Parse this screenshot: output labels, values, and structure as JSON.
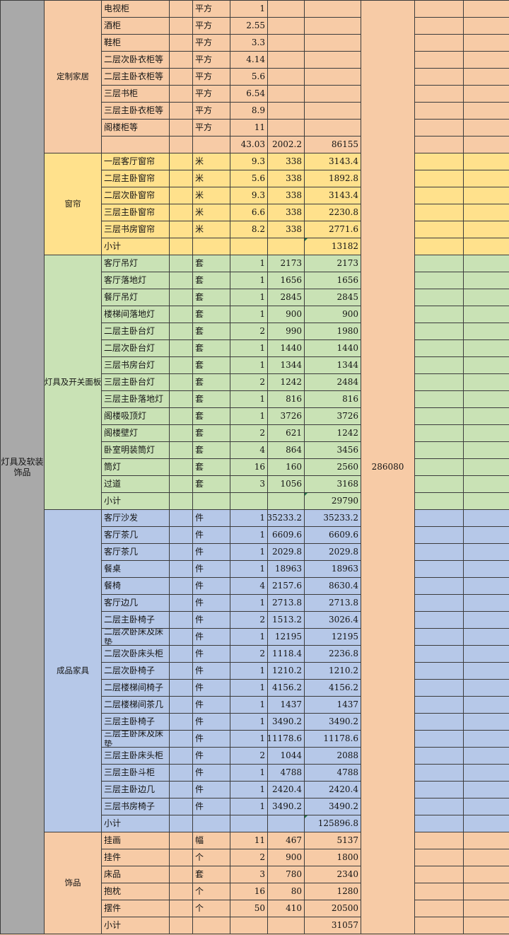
{
  "group": {
    "title": "灯具及软装饰品",
    "grand_total": "286080",
    "subtotal_label": "小计"
  },
  "colors": {
    "grid_line": "#3c3c3c",
    "gray": "#a9a9a9",
    "peach": "#f7cba6",
    "yellow": "#ffe18c",
    "green": "#c9e2b5",
    "blue": "#b6c8e8",
    "flag_green": "#217346"
  },
  "columns": [
    "group",
    "category",
    "item",
    "blank",
    "unit",
    "quantity",
    "unit_price",
    "total",
    "group_total",
    "extra_1",
    "extra_2"
  ],
  "sections": [
    {
      "name": "定制家居",
      "color": "#f7cba6",
      "rows": [
        {
          "item": "电视柜",
          "unit": "平方",
          "qty": "1"
        },
        {
          "item": "酒柜",
          "unit": "平方",
          "qty": "2.55"
        },
        {
          "item": "鞋柜",
          "unit": "平方",
          "qty": "3.3"
        },
        {
          "item": "二层次卧衣柜等",
          "unit": "平方",
          "qty": "4.14"
        },
        {
          "item": "二层主卧衣柜等",
          "unit": "平方",
          "qty": "5.6"
        },
        {
          "item": "三层书柜",
          "unit": "平方",
          "qty": "6.54"
        },
        {
          "item": "三层主卧衣柜等",
          "unit": "平方",
          "qty": "8.9"
        },
        {
          "item": "阁楼柜等",
          "unit": "平方",
          "qty": "11"
        }
      ],
      "subtotal": {
        "label": "",
        "qty": "43.03",
        "unit_price": "2002.2",
        "total": "86155",
        "flag": false
      }
    },
    {
      "name": "窗帘",
      "color": "#ffe18c",
      "rows": [
        {
          "item": "一层客厅窗帘",
          "unit": "米",
          "qty": "9.3",
          "unit_price": "338",
          "total": "3143.4"
        },
        {
          "item": "二层主卧窗帘",
          "unit": "米",
          "qty": "5.6",
          "unit_price": "338",
          "total": "1892.8"
        },
        {
          "item": "二层次卧窗帘",
          "unit": "米",
          "qty": "9.3",
          "unit_price": "338",
          "total": "3143.4"
        },
        {
          "item": "三层主卧窗帘",
          "unit": "米",
          "qty": "6.6",
          "unit_price": "338",
          "total": "2230.8"
        },
        {
          "item": "三层书房窗帘",
          "unit": "米",
          "qty": "8.2",
          "unit_price": "338",
          "total": "2771.6"
        }
      ],
      "subtotal": {
        "label": "小计",
        "total": "13182",
        "flag": true
      }
    },
    {
      "name": "灯具及开关面板",
      "color": "#c9e2b5",
      "rows": [
        {
          "item": "客厅吊灯",
          "unit": "套",
          "qty": "1",
          "unit_price": "2173",
          "total": "2173"
        },
        {
          "item": "客厅落地灯",
          "unit": "套",
          "qty": "1",
          "unit_price": "1656",
          "total": "1656"
        },
        {
          "item": "餐厅吊灯",
          "unit": "套",
          "qty": "1",
          "unit_price": "2845",
          "total": "2845"
        },
        {
          "item": "楼梯间落地灯",
          "unit": "套",
          "qty": "1",
          "unit_price": "900",
          "total": "900"
        },
        {
          "item": "二层主卧台灯",
          "unit": "套",
          "qty": "2",
          "unit_price": "990",
          "total": "1980"
        },
        {
          "item": "二层次卧台灯",
          "unit": "套",
          "qty": "1",
          "unit_price": "1440",
          "total": "1440"
        },
        {
          "item": "三层书房台灯",
          "unit": "套",
          "qty": "1",
          "unit_price": "1344",
          "total": "1344"
        },
        {
          "item": "三层主卧台灯",
          "unit": "套",
          "qty": "2",
          "unit_price": "1242",
          "total": "2484"
        },
        {
          "item": "三层主卧落地灯",
          "unit": "套",
          "qty": "1",
          "unit_price": "816",
          "total": "816"
        },
        {
          "item": "阁楼吸顶灯",
          "unit": "套",
          "qty": "1",
          "unit_price": "3726",
          "total": "3726"
        },
        {
          "item": "阁楼壁灯",
          "unit": "套",
          "qty": "2",
          "unit_price": "621",
          "total": "1242"
        },
        {
          "item": "卧室明装筒灯",
          "unit": "套",
          "qty": "4",
          "unit_price": "864",
          "total": "3456"
        },
        {
          "item": "筒灯",
          "unit": "套",
          "qty": "16",
          "unit_price": "160",
          "total": "2560"
        },
        {
          "item": "过道",
          "unit": "套",
          "qty": "3",
          "unit_price": "1056",
          "total": "3168"
        }
      ],
      "subtotal": {
        "label": "小计",
        "total": "29790",
        "flag": true
      }
    },
    {
      "name": "成品家具",
      "color": "#b6c8e8",
      "rows": [
        {
          "item": "客厅沙发",
          "unit": "件",
          "qty": "1",
          "unit_price": "35233.2",
          "total": "35233.2"
        },
        {
          "item": "客厅茶几",
          "unit": "件",
          "qty": "1",
          "unit_price": "6609.6",
          "total": "6609.6"
        },
        {
          "item": "客厅茶几",
          "unit": "件",
          "qty": "1",
          "unit_price": "2029.8",
          "total": "2029.8"
        },
        {
          "item": "餐桌",
          "unit": "件",
          "qty": "1",
          "unit_price": "18963",
          "total": "18963"
        },
        {
          "item": "餐椅",
          "unit": "件",
          "qty": "4",
          "unit_price": "2157.6",
          "total": "8630.4"
        },
        {
          "item": "客厅边几",
          "unit": "件",
          "qty": "1",
          "unit_price": "2713.8",
          "total": "2713.8"
        },
        {
          "item": "二层主卧椅子",
          "unit": "件",
          "qty": "2",
          "unit_price": "1513.2",
          "total": "3026.4"
        },
        {
          "item": "二层次卧床及床垫",
          "unit": "件",
          "qty": "1",
          "unit_price": "12195",
          "total": "12195"
        },
        {
          "item": "二层次卧床头柜",
          "unit": "件",
          "qty": "2",
          "unit_price": "1118.4",
          "total": "2236.8"
        },
        {
          "item": "二层次卧椅子",
          "unit": "件",
          "qty": "1",
          "unit_price": "1210.2",
          "total": "1210.2"
        },
        {
          "item": "二层楼梯间椅子",
          "unit": "件",
          "qty": "1",
          "unit_price": "4156.2",
          "total": "4156.2"
        },
        {
          "item": "二层楼梯间茶几",
          "unit": "件",
          "qty": "1",
          "unit_price": "1437",
          "total": "1437"
        },
        {
          "item": "三层主卧椅子",
          "unit": "件",
          "qty": "1",
          "unit_price": "3490.2",
          "total": "3490.2"
        },
        {
          "item": "三层主卧床及床垫",
          "unit": "件",
          "qty": "1",
          "unit_price": "11178.6",
          "total": "11178.6"
        },
        {
          "item": "三层主卧床头柜",
          "unit": "件",
          "qty": "2",
          "unit_price": "1044",
          "total": "2088"
        },
        {
          "item": "三层主卧斗柜",
          "unit": "件",
          "qty": "1",
          "unit_price": "4788",
          "total": "4788"
        },
        {
          "item": "三层主卧边几",
          "unit": "件",
          "qty": "1",
          "unit_price": "2420.4",
          "total": "2420.4"
        },
        {
          "item": "三层书房椅子",
          "unit": "件",
          "qty": "1",
          "unit_price": "3490.2",
          "total": "3490.2"
        }
      ],
      "subtotal": {
        "label": "小计",
        "total": "125896.8",
        "flag": true
      }
    },
    {
      "name": "饰品",
      "color": "#f7cba6",
      "rows": [
        {
          "item": "挂画",
          "unit": "幅",
          "qty": "11",
          "unit_price": "467",
          "total": "5137"
        },
        {
          "item": "挂件",
          "unit": "个",
          "qty": "2",
          "unit_price": "900",
          "total": "1800"
        },
        {
          "item": "床品",
          "unit": "套",
          "qty": "3",
          "unit_price": "780",
          "total": "2340"
        },
        {
          "item": "抱枕",
          "unit": "个",
          "qty": "16",
          "unit_price": "80",
          "total": "1280"
        },
        {
          "item": "摆件",
          "unit": "个",
          "qty": "50",
          "unit_price": "410",
          "total": "20500"
        }
      ],
      "subtotal": {
        "label": "小计",
        "total": "31057",
        "flag": false
      }
    }
  ]
}
